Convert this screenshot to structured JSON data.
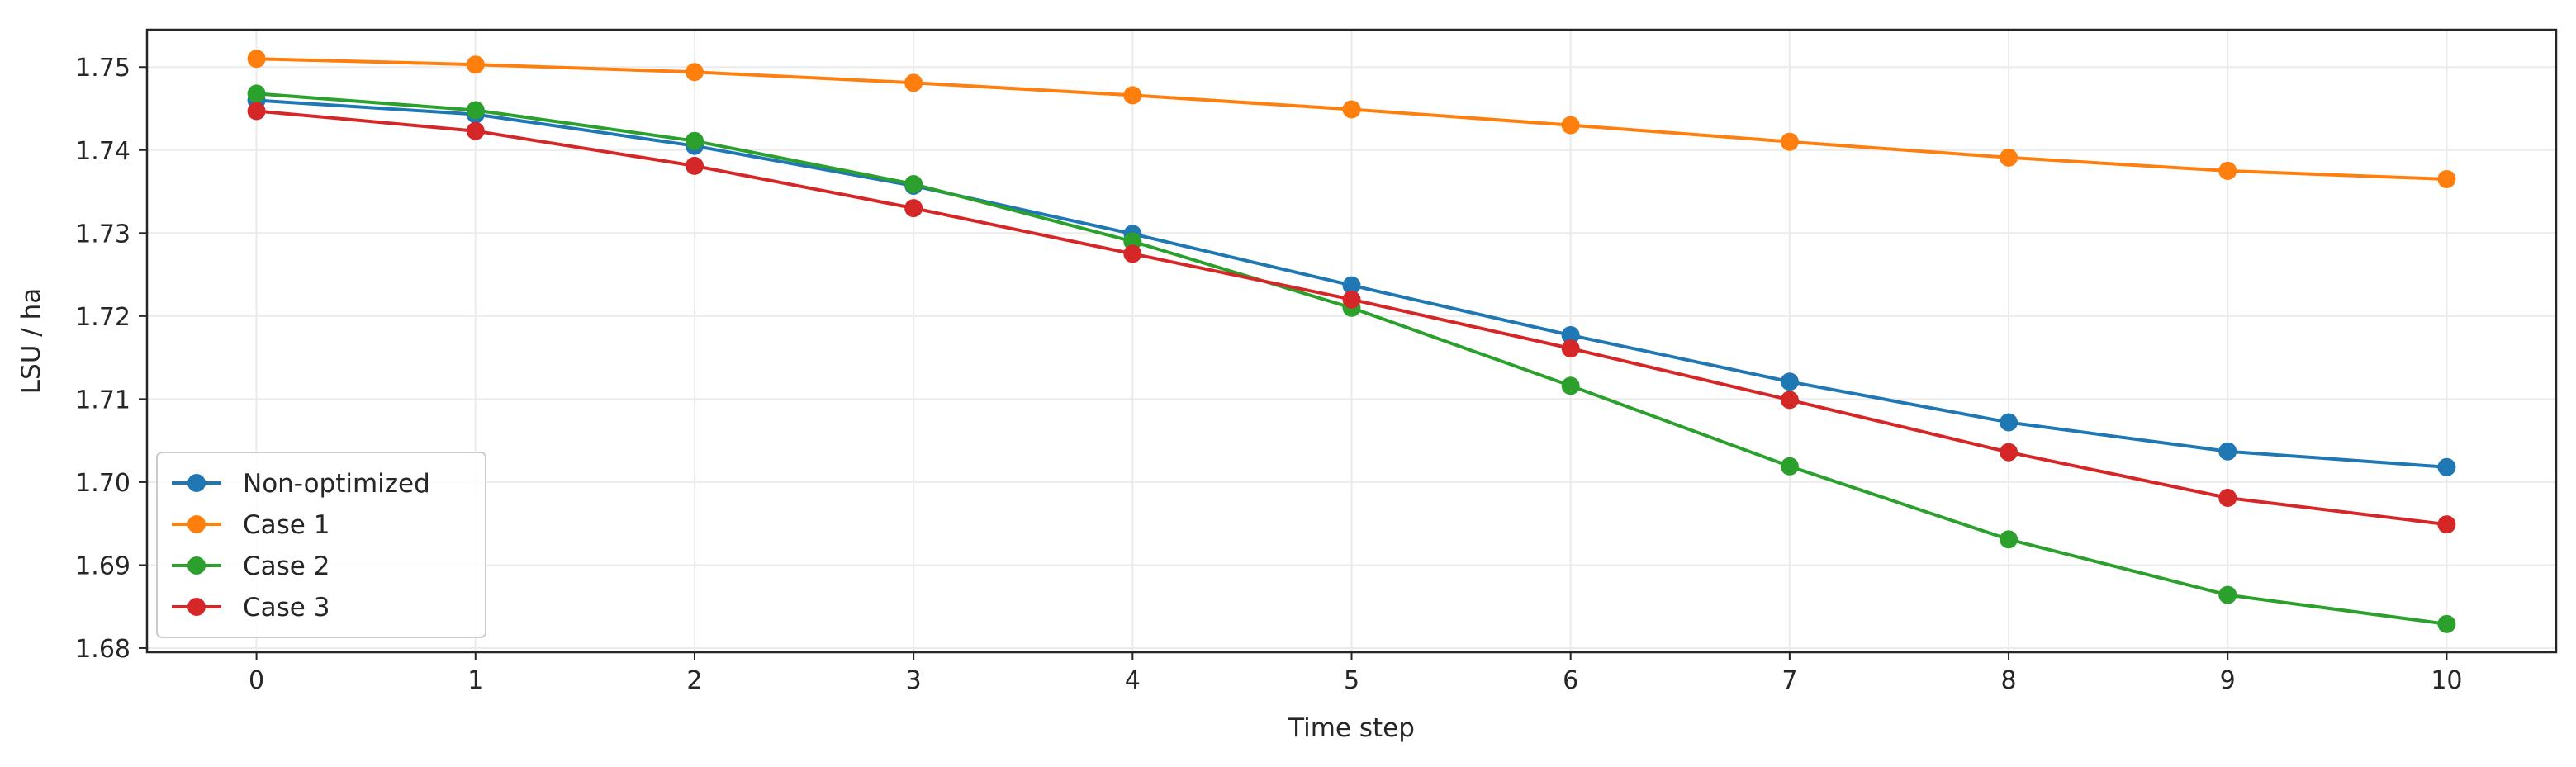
{
  "chart_data": {
    "type": "line",
    "title": "",
    "xlabel": "Time step",
    "ylabel": "LSU / ha",
    "x": [
      0,
      1,
      2,
      3,
      4,
      5,
      6,
      7,
      8,
      9,
      10
    ],
    "xticks": [
      0,
      1,
      2,
      3,
      4,
      5,
      6,
      7,
      8,
      9,
      10
    ],
    "xlim": [
      -0.5,
      10.5
    ],
    "ylim": [
      1.6795,
      1.7545
    ],
    "yticks": [
      1.68,
      1.69,
      1.7,
      1.71,
      1.72,
      1.73,
      1.74,
      1.75
    ],
    "ytick_labels": [
      "1.68",
      "1.69",
      "1.70",
      "1.71",
      "1.72",
      "1.73",
      "1.74",
      "1.75"
    ],
    "grid": true,
    "legend_position": "lower-left",
    "series": [
      {
        "name": "Non-optimized",
        "color": "#1f77b4",
        "values": [
          1.746,
          1.7443,
          1.7405,
          1.7357,
          1.7299,
          1.7237,
          1.7177,
          1.7121,
          1.7072,
          1.7037,
          1.7018
        ]
      },
      {
        "name": "Case 1",
        "color": "#ff7f0e",
        "values": [
          1.751,
          1.7503,
          1.7494,
          1.7481,
          1.7466,
          1.7449,
          1.743,
          1.741,
          1.7391,
          1.7375,
          1.7365
        ]
      },
      {
        "name": "Case 2",
        "color": "#2ca02c",
        "values": [
          1.7468,
          1.7448,
          1.7411,
          1.7359,
          1.729,
          1.721,
          1.7116,
          1.7019,
          1.6931,
          1.6864,
          1.6829
        ]
      },
      {
        "name": "Case 3",
        "color": "#d62728",
        "values": [
          1.7447,
          1.7423,
          1.7381,
          1.733,
          1.7275,
          1.722,
          1.7161,
          1.7099,
          1.7036,
          1.6981,
          1.6949
        ]
      }
    ]
  }
}
